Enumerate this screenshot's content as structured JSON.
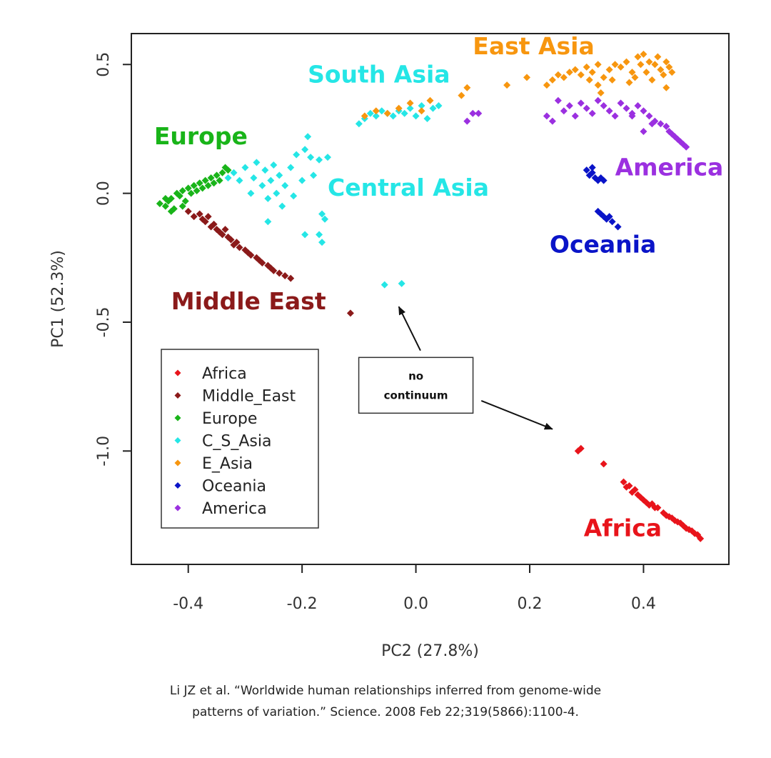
{
  "chart_data": {
    "type": "scatter",
    "xlabel": "PC2 (27.8%)",
    "ylabel": "PC1 (52.3%)",
    "xlim": [
      -0.5,
      0.55
    ],
    "ylim": [
      -1.44,
      0.62
    ],
    "x_ticks": [
      -0.4,
      -0.2,
      0.0,
      0.2,
      0.4
    ],
    "x_tick_labels": [
      "-0.4",
      "-0.2",
      "0.0",
      "0.2",
      "0.4"
    ],
    "y_ticks": [
      0.5,
      0.0,
      -0.5,
      -1.0
    ],
    "y_tick_labels": [
      "0.5",
      "0.0",
      "-0.5",
      "-1.0"
    ],
    "grid": false,
    "legend_position": "bottom-left",
    "legend": [
      {
        "label": "Africa",
        "color": "#e8141b"
      },
      {
        "label": "Middle_East",
        "color": "#8b1a1a"
      },
      {
        "label": "Europe",
        "color": "#19b419"
      },
      {
        "label": "C_S_Asia",
        "color": "#25e6e6"
      },
      {
        "label": "E_Asia",
        "color": "#f7960f"
      },
      {
        "label": "Oceania",
        "color": "#0a14c8"
      },
      {
        "label": "America",
        "color": "#9b30e0"
      }
    ],
    "series": [
      {
        "name": "Africa",
        "color": "#e8141b",
        "points": [
          {
            "x": 0.29,
            "y": -0.99
          },
          {
            "x": 0.285,
            "y": -1.0
          },
          {
            "x": 0.33,
            "y": -1.05
          },
          {
            "x": 0.365,
            "y": -1.12
          },
          {
            "x": 0.37,
            "y": -1.14
          },
          {
            "x": 0.375,
            "y": -1.135
          },
          {
            "x": 0.38,
            "y": -1.16
          },
          {
            "x": 0.385,
            "y": -1.15
          },
          {
            "x": 0.39,
            "y": -1.17
          },
          {
            "x": 0.395,
            "y": -1.18
          },
          {
            "x": 0.4,
            "y": -1.19
          },
          {
            "x": 0.405,
            "y": -1.2
          },
          {
            "x": 0.41,
            "y": -1.21
          },
          {
            "x": 0.415,
            "y": -1.205
          },
          {
            "x": 0.42,
            "y": -1.22
          },
          {
            "x": 0.425,
            "y": -1.22
          },
          {
            "x": 0.435,
            "y": -1.24
          },
          {
            "x": 0.44,
            "y": -1.25
          },
          {
            "x": 0.445,
            "y": -1.255
          },
          {
            "x": 0.45,
            "y": -1.26
          },
          {
            "x": 0.455,
            "y": -1.27
          },
          {
            "x": 0.46,
            "y": -1.275
          },
          {
            "x": 0.465,
            "y": -1.28
          },
          {
            "x": 0.47,
            "y": -1.29
          },
          {
            "x": 0.475,
            "y": -1.3
          },
          {
            "x": 0.48,
            "y": -1.305
          },
          {
            "x": 0.485,
            "y": -1.31
          },
          {
            "x": 0.49,
            "y": -1.32
          },
          {
            "x": 0.495,
            "y": -1.325
          },
          {
            "x": 0.5,
            "y": -1.34
          }
        ]
      },
      {
        "name": "Middle_East",
        "color": "#8b1a1a",
        "points": [
          {
            "x": -0.4,
            "y": -0.07
          },
          {
            "x": -0.39,
            "y": -0.09
          },
          {
            "x": -0.38,
            "y": -0.08
          },
          {
            "x": -0.375,
            "y": -0.1
          },
          {
            "x": -0.37,
            "y": -0.11
          },
          {
            "x": -0.365,
            "y": -0.09
          },
          {
            "x": -0.36,
            "y": -0.13
          },
          {
            "x": -0.355,
            "y": -0.12
          },
          {
            "x": -0.35,
            "y": -0.14
          },
          {
            "x": -0.345,
            "y": -0.15
          },
          {
            "x": -0.34,
            "y": -0.16
          },
          {
            "x": -0.335,
            "y": -0.14
          },
          {
            "x": -0.33,
            "y": -0.17
          },
          {
            "x": -0.325,
            "y": -0.18
          },
          {
            "x": -0.32,
            "y": -0.2
          },
          {
            "x": -0.315,
            "y": -0.19
          },
          {
            "x": -0.31,
            "y": -0.21
          },
          {
            "x": -0.3,
            "y": -0.22
          },
          {
            "x": -0.295,
            "y": -0.23
          },
          {
            "x": -0.29,
            "y": -0.24
          },
          {
            "x": -0.28,
            "y": -0.25
          },
          {
            "x": -0.275,
            "y": -0.26
          },
          {
            "x": -0.27,
            "y": -0.27
          },
          {
            "x": -0.26,
            "y": -0.28
          },
          {
            "x": -0.255,
            "y": -0.29
          },
          {
            "x": -0.25,
            "y": -0.3
          },
          {
            "x": -0.24,
            "y": -0.31
          },
          {
            "x": -0.23,
            "y": -0.32
          },
          {
            "x": -0.22,
            "y": -0.33
          },
          {
            "x": -0.115,
            "y": -0.465
          }
        ]
      },
      {
        "name": "Europe",
        "color": "#19b419",
        "points": [
          {
            "x": -0.45,
            "y": -0.04
          },
          {
            "x": -0.44,
            "y": -0.05
          },
          {
            "x": -0.435,
            "y": -0.03
          },
          {
            "x": -0.43,
            "y": -0.02
          },
          {
            "x": -0.425,
            "y": -0.06
          },
          {
            "x": -0.42,
            "y": 0.0
          },
          {
            "x": -0.415,
            "y": -0.01
          },
          {
            "x": -0.41,
            "y": 0.01
          },
          {
            "x": -0.405,
            "y": -0.03
          },
          {
            "x": -0.4,
            "y": 0.02
          },
          {
            "x": -0.395,
            "y": 0.0
          },
          {
            "x": -0.39,
            "y": 0.03
          },
          {
            "x": -0.385,
            "y": 0.01
          },
          {
            "x": -0.38,
            "y": 0.04
          },
          {
            "x": -0.375,
            "y": 0.02
          },
          {
            "x": -0.37,
            "y": 0.05
          },
          {
            "x": -0.365,
            "y": 0.03
          },
          {
            "x": -0.36,
            "y": 0.06
          },
          {
            "x": -0.355,
            "y": 0.04
          },
          {
            "x": -0.35,
            "y": 0.07
          },
          {
            "x": -0.345,
            "y": 0.05
          },
          {
            "x": -0.34,
            "y": 0.08
          },
          {
            "x": -0.335,
            "y": 0.1
          },
          {
            "x": -0.33,
            "y": 0.09
          },
          {
            "x": -0.43,
            "y": -0.07
          },
          {
            "x": -0.41,
            "y": -0.05
          },
          {
            "x": -0.44,
            "y": -0.02
          }
        ]
      },
      {
        "name": "C_S_Asia",
        "color": "#25e6e6",
        "points": [
          {
            "x": -0.33,
            "y": 0.06
          },
          {
            "x": -0.32,
            "y": 0.08
          },
          {
            "x": -0.31,
            "y": 0.05
          },
          {
            "x": -0.3,
            "y": 0.1
          },
          {
            "x": -0.29,
            "y": 0.0
          },
          {
            "x": -0.285,
            "y": 0.06
          },
          {
            "x": -0.28,
            "y": 0.12
          },
          {
            "x": -0.27,
            "y": 0.03
          },
          {
            "x": -0.265,
            "y": 0.09
          },
          {
            "x": -0.26,
            "y": -0.02
          },
          {
            "x": -0.255,
            "y": 0.05
          },
          {
            "x": -0.25,
            "y": 0.11
          },
          {
            "x": -0.245,
            "y": 0.0
          },
          {
            "x": -0.24,
            "y": 0.07
          },
          {
            "x": -0.235,
            "y": -0.05
          },
          {
            "x": -0.23,
            "y": 0.03
          },
          {
            "x": -0.22,
            "y": 0.1
          },
          {
            "x": -0.215,
            "y": -0.01
          },
          {
            "x": -0.21,
            "y": 0.15
          },
          {
            "x": -0.2,
            "y": 0.05
          },
          {
            "x": -0.195,
            "y": 0.17
          },
          {
            "x": -0.19,
            "y": 0.22
          },
          {
            "x": -0.185,
            "y": 0.14
          },
          {
            "x": -0.18,
            "y": 0.07
          },
          {
            "x": -0.17,
            "y": 0.13
          },
          {
            "x": -0.165,
            "y": -0.08
          },
          {
            "x": -0.16,
            "y": -0.1
          },
          {
            "x": -0.155,
            "y": 0.14
          },
          {
            "x": -0.17,
            "y": -0.16
          },
          {
            "x": -0.165,
            "y": -0.19
          },
          {
            "x": -0.195,
            "y": -0.16
          },
          {
            "x": -0.26,
            "y": -0.11
          },
          {
            "x": -0.1,
            "y": 0.27
          },
          {
            "x": -0.09,
            "y": 0.29
          },
          {
            "x": -0.08,
            "y": 0.31
          },
          {
            "x": -0.07,
            "y": 0.3
          },
          {
            "x": -0.06,
            "y": 0.32
          },
          {
            "x": -0.05,
            "y": 0.31
          },
          {
            "x": -0.04,
            "y": 0.3
          },
          {
            "x": -0.03,
            "y": 0.32
          },
          {
            "x": -0.02,
            "y": 0.31
          },
          {
            "x": -0.01,
            "y": 0.33
          },
          {
            "x": 0.0,
            "y": 0.3
          },
          {
            "x": 0.01,
            "y": 0.34
          },
          {
            "x": 0.02,
            "y": 0.29
          },
          {
            "x": 0.03,
            "y": 0.33
          },
          {
            "x": 0.04,
            "y": 0.34
          },
          {
            "x": -0.055,
            "y": -0.355
          },
          {
            "x": -0.025,
            "y": -0.35
          }
        ]
      },
      {
        "name": "E_Asia",
        "color": "#f7960f",
        "points": [
          {
            "x": -0.09,
            "y": 0.3
          },
          {
            "x": -0.07,
            "y": 0.32
          },
          {
            "x": -0.05,
            "y": 0.31
          },
          {
            "x": -0.03,
            "y": 0.33
          },
          {
            "x": -0.01,
            "y": 0.35
          },
          {
            "x": 0.01,
            "y": 0.32
          },
          {
            "x": 0.025,
            "y": 0.36
          },
          {
            "x": 0.08,
            "y": 0.38
          },
          {
            "x": 0.09,
            "y": 0.41
          },
          {
            "x": 0.16,
            "y": 0.42
          },
          {
            "x": 0.195,
            "y": 0.45
          },
          {
            "x": 0.23,
            "y": 0.42
          },
          {
            "x": 0.24,
            "y": 0.44
          },
          {
            "x": 0.25,
            "y": 0.46
          },
          {
            "x": 0.26,
            "y": 0.45
          },
          {
            "x": 0.27,
            "y": 0.47
          },
          {
            "x": 0.28,
            "y": 0.48
          },
          {
            "x": 0.29,
            "y": 0.46
          },
          {
            "x": 0.3,
            "y": 0.49
          },
          {
            "x": 0.305,
            "y": 0.44
          },
          {
            "x": 0.31,
            "y": 0.47
          },
          {
            "x": 0.32,
            "y": 0.42
          },
          {
            "x": 0.325,
            "y": 0.39
          },
          {
            "x": 0.33,
            "y": 0.45
          },
          {
            "x": 0.34,
            "y": 0.48
          },
          {
            "x": 0.35,
            "y": 0.5
          },
          {
            "x": 0.36,
            "y": 0.49
          },
          {
            "x": 0.37,
            "y": 0.51
          },
          {
            "x": 0.38,
            "y": 0.47
          },
          {
            "x": 0.39,
            "y": 0.53
          },
          {
            "x": 0.395,
            "y": 0.5
          },
          {
            "x": 0.4,
            "y": 0.54
          },
          {
            "x": 0.405,
            "y": 0.47
          },
          {
            "x": 0.41,
            "y": 0.51
          },
          {
            "x": 0.415,
            "y": 0.44
          },
          {
            "x": 0.42,
            "y": 0.5
          },
          {
            "x": 0.425,
            "y": 0.53
          },
          {
            "x": 0.43,
            "y": 0.48
          },
          {
            "x": 0.435,
            "y": 0.46
          },
          {
            "x": 0.44,
            "y": 0.51
          },
          {
            "x": 0.445,
            "y": 0.49
          },
          {
            "x": 0.45,
            "y": 0.47
          },
          {
            "x": 0.385,
            "y": 0.45
          },
          {
            "x": 0.375,
            "y": 0.43
          },
          {
            "x": 0.345,
            "y": 0.44
          },
          {
            "x": 0.44,
            "y": 0.41
          },
          {
            "x": 0.32,
            "y": 0.5
          }
        ]
      },
      {
        "name": "Oceania",
        "color": "#0a14c8",
        "points": [
          {
            "x": 0.3,
            "y": 0.09
          },
          {
            "x": 0.305,
            "y": 0.07
          },
          {
            "x": 0.31,
            "y": 0.08
          },
          {
            "x": 0.315,
            "y": 0.06
          },
          {
            "x": 0.32,
            "y": 0.05
          },
          {
            "x": 0.325,
            "y": 0.06
          },
          {
            "x": 0.33,
            "y": 0.05
          },
          {
            "x": 0.31,
            "y": 0.1
          },
          {
            "x": 0.32,
            "y": -0.07
          },
          {
            "x": 0.325,
            "y": -0.08
          },
          {
            "x": 0.33,
            "y": -0.09
          },
          {
            "x": 0.335,
            "y": -0.1
          },
          {
            "x": 0.34,
            "y": -0.09
          },
          {
            "x": 0.345,
            "y": -0.11
          },
          {
            "x": 0.355,
            "y": -0.13
          }
        ]
      },
      {
        "name": "America",
        "color": "#9b30e0",
        "points": [
          {
            "x": 0.09,
            "y": 0.28
          },
          {
            "x": 0.1,
            "y": 0.31
          },
          {
            "x": 0.11,
            "y": 0.31
          },
          {
            "x": 0.23,
            "y": 0.3
          },
          {
            "x": 0.24,
            "y": 0.28
          },
          {
            "x": 0.25,
            "y": 0.36
          },
          {
            "x": 0.26,
            "y": 0.32
          },
          {
            "x": 0.27,
            "y": 0.34
          },
          {
            "x": 0.28,
            "y": 0.3
          },
          {
            "x": 0.29,
            "y": 0.35
          },
          {
            "x": 0.3,
            "y": 0.33
          },
          {
            "x": 0.31,
            "y": 0.31
          },
          {
            "x": 0.32,
            "y": 0.36
          },
          {
            "x": 0.33,
            "y": 0.34
          },
          {
            "x": 0.34,
            "y": 0.32
          },
          {
            "x": 0.35,
            "y": 0.3
          },
          {
            "x": 0.36,
            "y": 0.35
          },
          {
            "x": 0.37,
            "y": 0.33
          },
          {
            "x": 0.38,
            "y": 0.31
          },
          {
            "x": 0.39,
            "y": 0.34
          },
          {
            "x": 0.4,
            "y": 0.32
          },
          {
            "x": 0.41,
            "y": 0.3
          },
          {
            "x": 0.42,
            "y": 0.28
          },
          {
            "x": 0.43,
            "y": 0.27
          },
          {
            "x": 0.44,
            "y": 0.26
          },
          {
            "x": 0.445,
            "y": 0.24
          },
          {
            "x": 0.45,
            "y": 0.23
          },
          {
            "x": 0.455,
            "y": 0.22
          },
          {
            "x": 0.46,
            "y": 0.21
          },
          {
            "x": 0.465,
            "y": 0.2
          },
          {
            "x": 0.47,
            "y": 0.19
          },
          {
            "x": 0.475,
            "y": 0.18
          },
          {
            "x": 0.4,
            "y": 0.24
          },
          {
            "x": 0.415,
            "y": 0.27
          },
          {
            "x": 0.38,
            "y": 0.3
          }
        ]
      }
    ],
    "cluster_labels": [
      {
        "text": "East Asia",
        "color": "#f7960f",
        "x": 0.1,
        "y": 0.54
      },
      {
        "text": "South Asia",
        "color": "#25e6e6",
        "x": -0.19,
        "y": 0.43
      },
      {
        "text": "Europe",
        "color": "#19b419",
        "x": -0.46,
        "y": 0.19
      },
      {
        "text": "America",
        "color": "#9b30e0",
        "x": 0.35,
        "y": 0.07
      },
      {
        "text": "Central Asia",
        "color": "#25e6e6",
        "x": -0.155,
        "y": -0.01
      },
      {
        "text": "Oceania",
        "color": "#0a14c8",
        "x": 0.235,
        "y": -0.23
      },
      {
        "text": "Middle East",
        "color": "#8b1a1a",
        "x": -0.43,
        "y": -0.45
      },
      {
        "text": "Africa",
        "color": "#e8141b",
        "x": 0.295,
        "y": -1.33
      }
    ],
    "annotations": [
      {
        "lines": [
          "no",
          "continuum"
        ],
        "x": 0.0,
        "y": -0.745
      }
    ],
    "annotation_arrows": [
      {
        "from": {
          "x": 0.008,
          "y": -0.61
        },
        "to": {
          "x": -0.03,
          "y": -0.44
        }
      },
      {
        "from": {
          "x": 0.115,
          "y": -0.805
        },
        "to": {
          "x": 0.24,
          "y": -0.915
        }
      }
    ]
  },
  "caption": {
    "line1": "Li JZ et al. “Worldwide human relationships inferred from genome-wide",
    "line2": "patterns of variation.” Science. 2008 Feb 22;319(5866):1100-4."
  }
}
